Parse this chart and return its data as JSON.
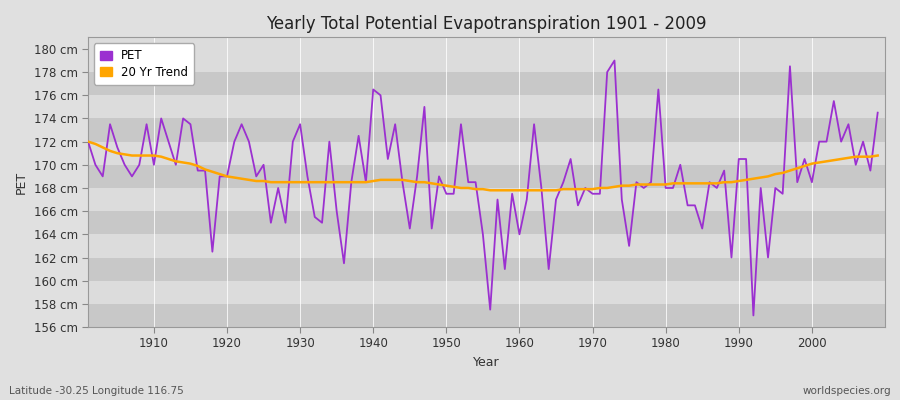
{
  "title": "Yearly Total Potential Evapotranspiration 1901 - 2009",
  "xlabel": "Year",
  "ylabel": "PET",
  "bottom_left": "Latitude -30.25 Longitude 116.75",
  "bottom_right": "worldspecies.org",
  "ylim": [
    156,
    181
  ],
  "yticks": [
    156,
    158,
    160,
    162,
    164,
    166,
    168,
    170,
    172,
    174,
    176,
    178,
    180
  ],
  "ytick_labels": [
    "156 cm",
    "158 cm",
    "160 cm",
    "162 cm",
    "164 cm",
    "166 cm",
    "168 cm",
    "170 cm",
    "172 cm",
    "174 cm",
    "176 cm",
    "178 cm",
    "180 cm"
  ],
  "xlim": [
    1901,
    2010
  ],
  "xticks": [
    1910,
    1920,
    1930,
    1940,
    1950,
    1960,
    1970,
    1980,
    1990,
    2000
  ],
  "pet_color": "#9B30D0",
  "trend_color": "#FFA500",
  "fig_bg_color": "#E0E0E0",
  "plot_bg_light": "#DCDCDC",
  "plot_bg_dark": "#C8C8C8",
  "legend_pet": "PET",
  "legend_trend": "20 Yr Trend",
  "pet_years": [
    1901,
    1902,
    1903,
    1904,
    1905,
    1906,
    1907,
    1908,
    1909,
    1910,
    1911,
    1912,
    1913,
    1914,
    1915,
    1916,
    1917,
    1918,
    1919,
    1920,
    1921,
    1922,
    1923,
    1924,
    1925,
    1926,
    1927,
    1928,
    1929,
    1930,
    1931,
    1932,
    1933,
    1934,
    1935,
    1936,
    1937,
    1938,
    1939,
    1940,
    1941,
    1942,
    1943,
    1944,
    1945,
    1946,
    1947,
    1948,
    1949,
    1950,
    1951,
    1952,
    1953,
    1954,
    1955,
    1956,
    1957,
    1958,
    1959,
    1960,
    1961,
    1962,
    1963,
    1964,
    1965,
    1966,
    1967,
    1968,
    1969,
    1970,
    1971,
    1972,
    1973,
    1974,
    1975,
    1976,
    1977,
    1978,
    1979,
    1980,
    1981,
    1982,
    1983,
    1984,
    1985,
    1986,
    1987,
    1988,
    1989,
    1990,
    1991,
    1992,
    1993,
    1994,
    1995,
    1996,
    1997,
    1998,
    1999,
    2000,
    2001,
    2002,
    2003,
    2004,
    2005,
    2006,
    2007,
    2008,
    2009
  ],
  "pet_values": [
    172.0,
    170.0,
    169.0,
    173.5,
    171.5,
    170.0,
    169.0,
    170.0,
    173.5,
    170.0,
    174.0,
    172.0,
    170.0,
    174.0,
    173.5,
    169.5,
    169.5,
    162.5,
    169.0,
    169.0,
    172.0,
    173.5,
    172.0,
    169.0,
    170.0,
    165.0,
    168.0,
    165.0,
    172.0,
    173.5,
    169.0,
    165.5,
    165.0,
    172.0,
    166.0,
    161.5,
    168.5,
    172.5,
    168.5,
    176.5,
    176.0,
    170.5,
    173.5,
    168.5,
    164.5,
    169.0,
    175.0,
    164.5,
    169.0,
    167.5,
    167.5,
    173.5,
    168.5,
    168.5,
    164.0,
    157.5,
    167.0,
    161.0,
    167.5,
    164.0,
    167.0,
    173.5,
    168.0,
    161.0,
    167.0,
    168.5,
    170.5,
    166.5,
    168.0,
    167.5,
    167.5,
    178.0,
    179.0,
    167.0,
    163.0,
    168.5,
    168.0,
    168.5,
    176.5,
    168.0,
    168.0,
    170.0,
    166.5,
    166.5,
    164.5,
    168.5,
    168.0,
    169.5,
    162.0,
    170.5,
    170.5,
    157.0,
    168.0,
    162.0,
    168.0,
    167.5,
    178.5,
    168.5,
    170.5,
    168.5,
    172.0,
    172.0,
    175.5,
    172.0,
    173.5,
    170.0,
    172.0,
    169.5,
    174.5
  ],
  "trend_years": [
    1901,
    1902,
    1903,
    1904,
    1905,
    1906,
    1907,
    1908,
    1909,
    1910,
    1911,
    1912,
    1913,
    1914,
    1915,
    1916,
    1917,
    1918,
    1919,
    1920,
    1921,
    1922,
    1923,
    1924,
    1925,
    1926,
    1927,
    1928,
    1929,
    1930,
    1931,
    1932,
    1933,
    1934,
    1935,
    1936,
    1937,
    1938,
    1939,
    1940,
    1941,
    1942,
    1943,
    1944,
    1945,
    1946,
    1947,
    1948,
    1949,
    1950,
    1951,
    1952,
    1953,
    1954,
    1955,
    1956,
    1957,
    1958,
    1959,
    1960,
    1961,
    1962,
    1963,
    1964,
    1965,
    1966,
    1967,
    1968,
    1969,
    1970,
    1971,
    1972,
    1973,
    1974,
    1975,
    1976,
    1977,
    1978,
    1979,
    1980,
    1981,
    1982,
    1983,
    1984,
    1985,
    1986,
    1987,
    1988,
    1989,
    1990,
    1991,
    1992,
    1993,
    1994,
    1995,
    1996,
    1997,
    1998,
    1999,
    2000,
    2001,
    2002,
    2003,
    2004,
    2005,
    2006,
    2007,
    2008,
    2009
  ],
  "trend_values": [
    172.0,
    171.8,
    171.5,
    171.2,
    171.0,
    170.9,
    170.8,
    170.8,
    170.8,
    170.8,
    170.7,
    170.5,
    170.3,
    170.2,
    170.1,
    169.9,
    169.6,
    169.4,
    169.2,
    169.0,
    168.9,
    168.8,
    168.7,
    168.6,
    168.6,
    168.5,
    168.5,
    168.5,
    168.5,
    168.5,
    168.5,
    168.5,
    168.5,
    168.5,
    168.5,
    168.5,
    168.5,
    168.5,
    168.5,
    168.6,
    168.7,
    168.7,
    168.7,
    168.7,
    168.6,
    168.5,
    168.5,
    168.4,
    168.3,
    168.2,
    168.1,
    168.0,
    168.0,
    167.9,
    167.9,
    167.8,
    167.8,
    167.8,
    167.8,
    167.8,
    167.8,
    167.8,
    167.8,
    167.8,
    167.8,
    167.9,
    167.9,
    167.9,
    167.9,
    167.9,
    168.0,
    168.0,
    168.1,
    168.2,
    168.2,
    168.3,
    168.3,
    168.3,
    168.3,
    168.3,
    168.4,
    168.4,
    168.4,
    168.4,
    168.4,
    168.4,
    168.4,
    168.5,
    168.5,
    168.6,
    168.7,
    168.8,
    168.9,
    169.0,
    169.2,
    169.3,
    169.5,
    169.7,
    169.9,
    170.1,
    170.2,
    170.3,
    170.4,
    170.5,
    170.6,
    170.7,
    170.7,
    170.7,
    170.8
  ]
}
